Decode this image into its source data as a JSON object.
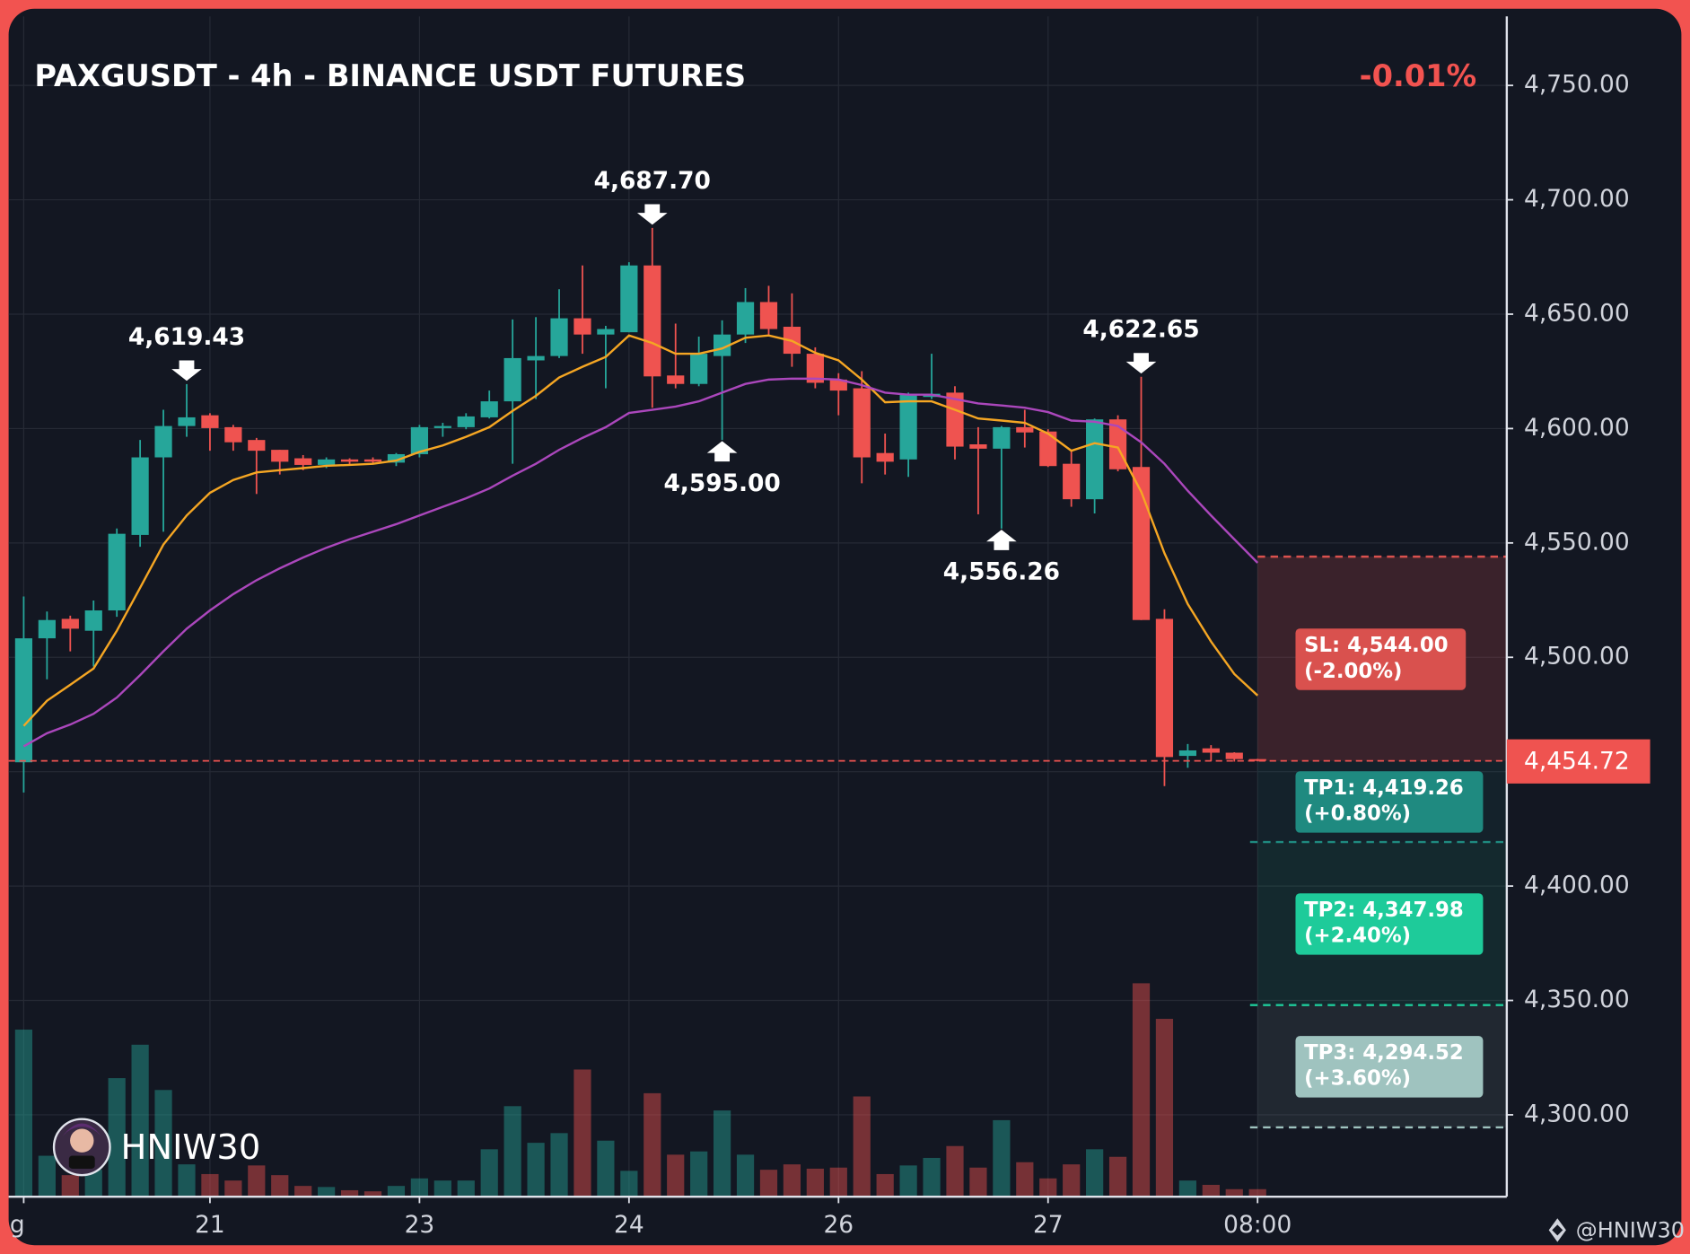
{
  "chart_data": {
    "type": "candlestick",
    "title": "PAXGUSDT - 4h - BINANCE USDT FUTURES",
    "change_label": "-0.01%",
    "categories": [
      "g",
      null,
      null,
      null,
      null,
      null,
      null,
      null,
      "21",
      null,
      null,
      null,
      null,
      null,
      null,
      null,
      null,
      "23",
      null,
      null,
      null,
      null,
      null,
      null,
      null,
      null,
      "24",
      null,
      null,
      null,
      null,
      null,
      null,
      null,
      null,
      "26",
      null,
      null,
      null,
      null,
      null,
      null,
      null,
      null,
      "27",
      null,
      null,
      null,
      null,
      null,
      null,
      null,
      null,
      "08:00"
    ],
    "open": [
      4454.1,
      4508.3,
      4516.8,
      4511.6,
      4520.5,
      4553.5,
      4587.4,
      4601.1,
      4605.8,
      4600.6,
      4595.0,
      4590.7,
      4587.0,
      4584.1,
      4586.5,
      4586.5,
      4585.1,
      4588.8,
      4600.2,
      4600.6,
      4604.9,
      4611.9,
      4629.8,
      4631.7,
      4648.2,
      4641.1,
      4642.1,
      4671.3,
      4623.2,
      4619.5,
      4631.7,
      4641.1,
      4655.3,
      4644.5,
      4632.7,
      4621.4,
      4617.6,
      4589.3,
      4586.5,
      4613.8,
      4615.7,
      4593.1,
      4591.2,
      4600.6,
      4598.7,
      4584.6,
      4569.1,
      4604.0,
      4583.2,
      4516.8,
      4456.9,
      4460.2,
      4458.3,
      4455.5
    ],
    "high": [
      4526.6,
      4520.0,
      4518.2,
      4524.8,
      4556.3,
      4595.0,
      4608.2,
      4619.43,
      4606.7,
      4601.6,
      4595.9,
      4590.7,
      4588.4,
      4587.4,
      4587.0,
      4587.4,
      4589.3,
      4601.6,
      4602.5,
      4606.7,
      4616.6,
      4647.7,
      4648.7,
      4660.9,
      4671.3,
      4644.9,
      4672.7,
      4687.7,
      4645.9,
      4640.2,
      4647.3,
      4661.4,
      4662.4,
      4659.1,
      4635.5,
      4624.2,
      4625.1,
      4597.8,
      4615.7,
      4632.7,
      4618.5,
      4600.6,
      4601.1,
      4608.2,
      4599.7,
      4590.3,
      4604.4,
      4605.8,
      4622.65,
      4521.0,
      4462.1,
      4461.6,
      4458.5,
      4455.6
    ],
    "low": [
      4440.9,
      4490.4,
      4502.6,
      4496.0,
      4517.7,
      4548.3,
      4554.9,
      4596.4,
      4590.3,
      4590.3,
      4571.4,
      4579.9,
      4581.8,
      4582.7,
      4584.1,
      4584.6,
      4583.6,
      4587.4,
      4596.4,
      4599.7,
      4604.4,
      4584.6,
      4612.9,
      4630.8,
      4632.7,
      4617.6,
      4642.1,
      4609.1,
      4617.6,
      4618.5,
      4595.0,
      4637.4,
      4641.1,
      4627.0,
      4617.6,
      4605.8,
      4576.1,
      4579.9,
      4578.9,
      4612.9,
      4586.5,
      4562.5,
      4556.26,
      4591.7,
      4583.2,
      4565.8,
      4562.9,
      4581.3,
      4516.3,
      4443.7,
      4451.7,
      4454.6,
      4454.4,
      4454.5
    ],
    "close": [
      4508.3,
      4516.3,
      4512.5,
      4520.5,
      4554.0,
      4587.4,
      4601.1,
      4604.9,
      4600.2,
      4594.0,
      4590.3,
      4585.5,
      4584.1,
      4586.5,
      4585.5,
      4585.5,
      4588.8,
      4600.6,
      4601.1,
      4605.3,
      4611.9,
      4630.8,
      4631.7,
      4648.2,
      4641.1,
      4643.5,
      4671.3,
      4622.8,
      4619.5,
      4632.7,
      4641.1,
      4655.3,
      4643.5,
      4632.7,
      4620.0,
      4616.6,
      4587.4,
      4585.5,
      4614.8,
      4615.2,
      4592.1,
      4591.2,
      4600.6,
      4598.3,
      4583.6,
      4569.1,
      4604.0,
      4582.2,
      4516.3,
      4456.4,
      4459.3,
      4458.3,
      4455.5,
      4454.72
    ],
    "volume": [
      155,
      38,
      20,
      25,
      110,
      141,
      99,
      30,
      21,
      15,
      29,
      20,
      10,
      9,
      6,
      5,
      10,
      17,
      15,
      15,
      44,
      84,
      50,
      59,
      118,
      52,
      24,
      96,
      39,
      42,
      80,
      39,
      25,
      30,
      26,
      27,
      93,
      21,
      29,
      36,
      47,
      27,
      71,
      32,
      17,
      30,
      44,
      37,
      198,
      165,
      15,
      11,
      7,
      7
    ],
    "up_color": "#26a69a",
    "down_color": "#ef5350",
    "moving_averages": [
      {
        "color": "#f5a623",
        "values": [
          4470,
          4481,
          4488.0,
          4495.1,
          4511.6,
          4530.4,
          4549.3,
          4562.0,
          4571.9,
          4577.5,
          4580.8,
          4581.8,
          4582.7,
          4583.7,
          4584.1,
          4584.6,
          4586.0,
          4589.8,
          4592.6,
          4596.4,
          4600.6,
          4607.7,
          4614.3,
          4622.3,
          4627.0,
          4631.3,
          4640.7,
          4637.4,
          4632.7,
          4632.7,
          4635.0,
          4639.7,
          4640.7,
          4638.3,
          4633.1,
          4629.8,
          4621.4,
          4611.5,
          4611.9,
          4611.9,
          4608.2,
          4604.4,
          4603.5,
          4602.5,
          4597.8,
          4590.3,
          4593.6,
          4591.7,
          4572.4,
          4545.5,
          4523.3,
          4506.9,
          4492.7,
          4483.3
        ]
      },
      {
        "color": "#ab47bc",
        "values": [
          4461.1,
          4466.8,
          4470.6,
          4475.3,
          4482.4,
          4492.2,
          4502.6,
          4512.5,
          4520.5,
          4527.6,
          4533.7,
          4538.9,
          4543.6,
          4547.9,
          4551.6,
          4554.9,
          4558.2,
          4562.0,
          4565.8,
          4569.5,
          4573.8,
          4579.4,
          4584.6,
          4590.7,
          4595.9,
          4600.6,
          4606.8,
          4608.2,
          4609.6,
          4611.9,
          4615.7,
          4619.5,
          4621.4,
          4621.8,
          4621.8,
          4621.4,
          4619.0,
          4615.7,
          4614.8,
          4614.8,
          4612.9,
          4611.0,
          4610.1,
          4609.1,
          4607.2,
          4603.5,
          4603.0,
          4601.1,
          4594.0,
          4584.6,
          4572.8,
          4562.0,
          4551.6,
          4541.3
        ]
      }
    ],
    "ylim": [
      4264.2,
      4780.2
    ],
    "yticks": [
      {
        "value": 4300,
        "label": "4,300.00"
      },
      {
        "value": 4350,
        "label": "4,350.00"
      },
      {
        "value": 4400,
        "label": "4,400.00"
      },
      {
        "value": 4450,
        "label": "4,450.00"
      },
      {
        "value": 4500,
        "label": "4,500.00"
      },
      {
        "value": 4550,
        "label": "4,550.00"
      },
      {
        "value": 4600,
        "label": "4,600.00"
      },
      {
        "value": 4650,
        "label": "4,650.00"
      },
      {
        "value": 4700,
        "label": "4,700.00"
      },
      {
        "value": 4750,
        "label": "4,750.00"
      }
    ],
    "grid": true,
    "annotations": [
      {
        "category": 7,
        "side": "high",
        "value": 4619.43,
        "label": "4,619.43"
      },
      {
        "category": 27,
        "side": "high",
        "value": 4687.7,
        "label": "4,687.70"
      },
      {
        "category": 30,
        "side": "low",
        "value": 4595.0,
        "label": "4,595.00"
      },
      {
        "category": 42,
        "side": "low",
        "value": 4556.26,
        "label": "4,556.26"
      },
      {
        "category": 48,
        "side": "high",
        "value": 4622.65,
        "label": "4,622.65"
      }
    ],
    "last_price": {
      "value": 4454.72,
      "label": "4,454.72"
    },
    "levels": [
      {
        "value": 4544.0,
        "label": "SL: 4,544.00",
        "change": "(-2.00%)",
        "color": "#d9514e"
      },
      {
        "value": 4419.26,
        "label": "TP1: 4,419.26",
        "change": "(+0.80%)",
        "color": "#1f8a80"
      },
      {
        "value": 4347.98,
        "label": "TP2: 4,347.98",
        "change": "(+2.40%)",
        "color": "#1ecb9a"
      },
      {
        "value": 4294.52,
        "label": "TP3: 4,294.52",
        "change": "(+3.60%)",
        "color": "#9fc3bf"
      }
    ],
    "watermark": "HNIW30",
    "credit": "@HNIW30"
  }
}
